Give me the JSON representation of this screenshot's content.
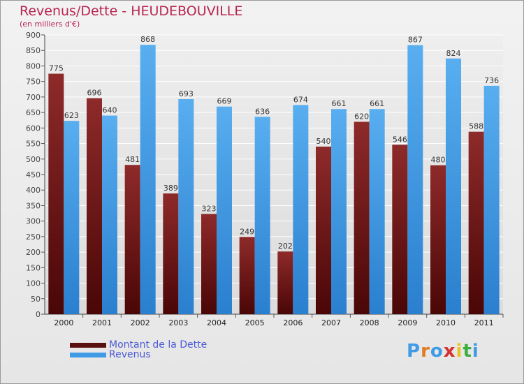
{
  "header": {
    "title": "Revenus/Dette - HEUDEBOUVILLE",
    "subtitle": "(en milliers d'€)"
  },
  "colors": {
    "dette": "#7a1a1a",
    "revenus": "#3f9be6",
    "title": "#b8254f",
    "legend_text": "#4b5bd6"
  },
  "chart_data": {
    "type": "bar",
    "title": "Revenus/Dette - HEUDEBOUVILLE",
    "subtitle": "(en milliers d'€)",
    "categories": [
      "2000",
      "2001",
      "2002",
      "2003",
      "2004",
      "2005",
      "2006",
      "2007",
      "2008",
      "2009",
      "2010",
      "2011"
    ],
    "series": [
      {
        "name": "Montant de la Dette",
        "values": [
          775,
          696,
          481,
          389,
          323,
          249,
          202,
          540,
          620,
          546,
          480,
          588
        ]
      },
      {
        "name": "Revenus",
        "values": [
          623,
          640,
          868,
          693,
          669,
          636,
          674,
          661,
          661,
          867,
          824,
          736
        ]
      }
    ],
    "ylim": [
      0,
      900
    ],
    "ytick_step": 50,
    "grid": true,
    "legend_position": "bottom-left"
  },
  "legend": [
    {
      "label": "Montant de la Dette"
    },
    {
      "label": "Revenus"
    }
  ],
  "logo": {
    "text": "Proxiti"
  }
}
